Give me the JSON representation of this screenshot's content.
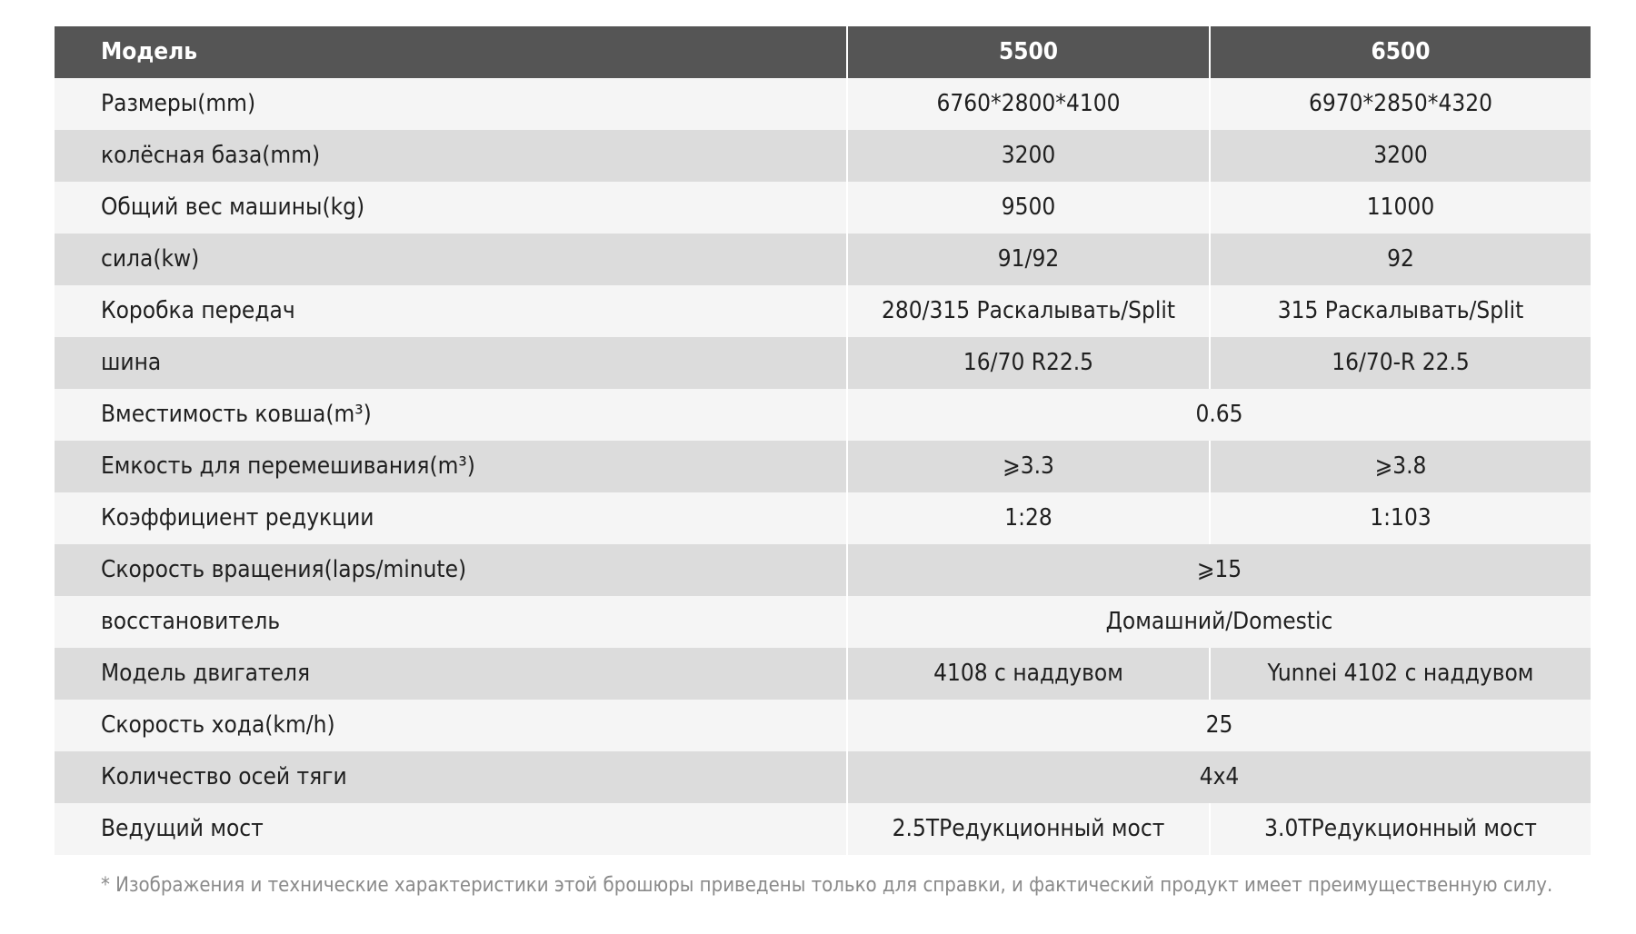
{
  "table": {
    "headers": [
      "Модель",
      "5500",
      "6500"
    ],
    "rows": [
      [
        "Размеры(mm)",
        "6760*2800*4100",
        "6970*2850*4320"
      ],
      [
        "колёсная база(mm)",
        "3200",
        "3200"
      ],
      [
        "Общий вес машины(kg)",
        "9500",
        "11000"
      ],
      [
        "сила(kw)",
        "91/92",
        "92"
      ],
      [
        "Коробка передач",
        "280/315 Раскалывать/Split",
        "315 Раскалывать/Split"
      ],
      [
        "шина",
        "16/70 R22.5",
        "16/70-R 22.5"
      ],
      [
        "Вместимость ковша(m³)",
        "0.65"
      ],
      [
        "Емкость для перемешивания(m³)",
        "⩾3.3",
        "⩾3.8"
      ],
      [
        "Коэффициент редукции",
        "1:28",
        "1:103"
      ],
      [
        "Скорость вращения(laps/minute)",
        "⩾15"
      ],
      [
        "восстановитель",
        "Домашний/Domestic"
      ],
      [
        "Модель двигателя",
        "4108 с наддувом",
        "Yunnei 4102 с наддувом"
      ],
      [
        "Скорость хода(km/h)",
        "25"
      ],
      [
        "Количество осей тяги",
        "4x4"
      ],
      [
        "Ведущий мост",
        "2.5TРедукционный мост",
        "3.0TРедукционный мост"
      ]
    ]
  },
  "footnote": "* Изображения и технические характеристики этой брошюры приведены только для справки, и фактический продукт имеет преимущественную силу."
}
